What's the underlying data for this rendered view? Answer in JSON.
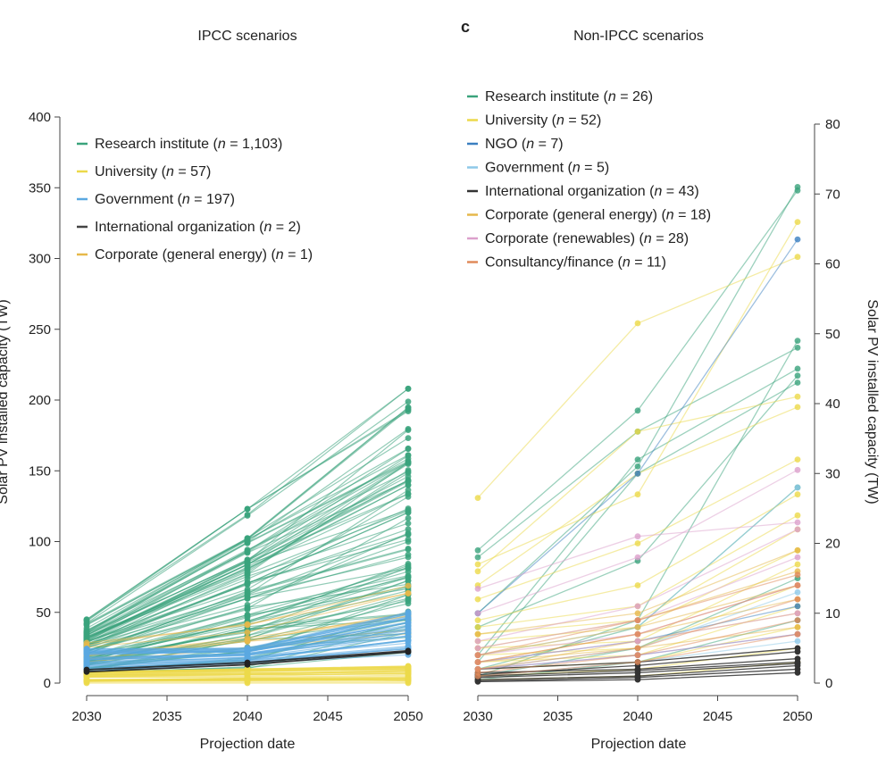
{
  "chart_data": [
    {
      "type": "line",
      "title": "IPCC scenarios",
      "panel_label": "",
      "xlabel": "Projection date",
      "ylabel": "Solar PV installed capacity (TW)",
      "xlim": [
        2030,
        2050
      ],
      "ylim": [
        0,
        400
      ],
      "xticks": [
        2030,
        2035,
        2040,
        2045,
        2050
      ],
      "yticks": [
        0,
        50,
        100,
        150,
        200,
        250,
        300,
        350,
        400
      ],
      "legend_position": "top-left",
      "legend": [
        {
          "label": "Research institute",
          "n": "1,103",
          "color": "#3aa37c"
        },
        {
          "label": "University",
          "n": "57",
          "color": "#ecd94a"
        },
        {
          "label": "Government",
          "n": "197",
          "color": "#5aa8e0"
        },
        {
          "label": "International organization",
          "n": "2",
          "color": "#444444"
        },
        {
          "label": "Corporate (general energy)",
          "n": "1",
          "color": "#e6b84a"
        }
      ],
      "series": [
        {
          "name": "Research institute",
          "color": "#3aa37c",
          "x": [
            2030,
            2040,
            2050
          ],
          "ranges": [
            [
              6,
              45
            ],
            [
              10,
              123
            ],
            [
              20,
              208
            ]
          ],
          "line_count": 90
        },
        {
          "name": "Corporate (general energy)",
          "color": "#e6b84a",
          "x": [
            2030,
            2040,
            2050
          ],
          "ranges": [
            [
              15,
              35
            ],
            [
              25,
              52
            ],
            [
              35,
              90
            ]
          ],
          "line_count": 8
        },
        {
          "name": "Government",
          "color": "#5aa8e0",
          "x": [
            2030,
            2040,
            2050
          ],
          "ranges": [
            [
              8,
              25
            ],
            [
              14,
              25
            ],
            [
              20,
              50
            ]
          ],
          "line_count": 40
        },
        {
          "name": "University",
          "color": "#ecd94a",
          "x": [
            2030,
            2040,
            2050
          ],
          "ranges": [
            [
              0,
              8
            ],
            [
              0,
              10
            ],
            [
              0,
              12
            ]
          ],
          "line_count": 40
        },
        {
          "name": "International organization",
          "color": "#222222",
          "x": [
            2030,
            2040,
            2050
          ],
          "ranges": [
            [
              8,
              12
            ],
            [
              13,
              17
            ],
            [
              22,
              24
            ]
          ],
          "line_count": 2
        }
      ]
    },
    {
      "type": "line",
      "title": "Non-IPCC scenarios",
      "panel_label": "c",
      "xlabel": "Projection date",
      "ylabel": "Solar PV installed capacity (TW)",
      "xlim": [
        2030,
        2050
      ],
      "ylim": [
        0,
        80
      ],
      "xticks": [
        2030,
        2035,
        2040,
        2045,
        2050
      ],
      "yticks": [
        0,
        10,
        20,
        30,
        40,
        50,
        60,
        70,
        80
      ],
      "legend_position": "top-left",
      "legend": [
        {
          "label": "Research institute",
          "n": "26",
          "color": "#3aa37c"
        },
        {
          "label": "University",
          "n": "52",
          "color": "#ecd94a"
        },
        {
          "label": "NGO",
          "n": "7",
          "color": "#3b7fc0"
        },
        {
          "label": "Government",
          "n": "5",
          "color": "#8ec9e8"
        },
        {
          "label": "International organization",
          "n": "43",
          "color": "#333333"
        },
        {
          "label": "Corporate (general energy)",
          "n": "18",
          "color": "#e6b84a"
        },
        {
          "label": "Corporate (renewables)",
          "n": "28",
          "color": "#dca0cc"
        },
        {
          "label": "Consultancy/finance",
          "n": "11",
          "color": "#e08a5a"
        }
      ],
      "series": [
        {
          "name": "Research institute",
          "color": "#3aa37c",
          "x": [
            2030,
            2040,
            2050
          ],
          "lines": [
            [
              19,
              39,
              70.5
            ],
            [
              18,
              36,
              48
            ],
            [
              10,
              31,
              71
            ],
            [
              8,
              17.5,
              44
            ],
            [
              2,
              8,
              28
            ],
            [
              1,
              5,
              15
            ],
            [
              0.5,
              3,
              9
            ],
            [
              1,
              9,
              49
            ],
            [
              4,
              32,
              45
            ],
            [
              3,
              30,
              43
            ]
          ]
        },
        {
          "name": "University",
          "color": "#ecd94a",
          "x": [
            2030,
            2040,
            2050
          ],
          "lines": [
            [
              26.5,
              51.5,
              61
            ],
            [
              17,
              27,
              66
            ],
            [
              16,
              36,
              41
            ],
            [
              14,
              30,
              39.5
            ],
            [
              12,
              20,
              32
            ],
            [
              9,
              14,
              27
            ],
            [
              8,
              11,
              24
            ],
            [
              7,
              9,
              22
            ],
            [
              6,
              8,
              19
            ],
            [
              5,
              6,
              17
            ],
            [
              4,
              5,
              14
            ],
            [
              3,
              4,
              11
            ],
            [
              2,
              3,
              8
            ],
            [
              1,
              2,
              5
            ],
            [
              0.5,
              1,
              3
            ]
          ]
        },
        {
          "name": "NGO",
          "color": "#3b7fc0",
          "x": [
            2030,
            2040,
            2050
          ],
          "lines": [
            [
              10,
              30,
              63.5
            ],
            [
              3,
              6,
              11
            ],
            [
              2,
              4,
              7
            ]
          ]
        },
        {
          "name": "Government",
          "color": "#8ec9e8",
          "x": [
            2030,
            2040,
            2050
          ],
          "lines": [
            [
              4,
              8,
              28
            ],
            [
              2,
              5,
              13
            ],
            [
              1,
              3,
              6
            ]
          ]
        },
        {
          "name": "International organization",
          "color": "#333333",
          "x": [
            2030,
            2040,
            2050
          ],
          "lines": [
            [
              1.5,
              2,
              3.5
            ],
            [
              1,
              1.8,
              3
            ],
            [
              0.8,
              1.5,
              2.8
            ],
            [
              0.5,
              1,
              2.5
            ],
            [
              0.3,
              0.8,
              2
            ],
            [
              0.2,
              0.5,
              1.5
            ],
            [
              1.2,
              2.5,
              4.5
            ],
            [
              2,
              3,
              5
            ]
          ]
        },
        {
          "name": "Corporate (general energy)",
          "color": "#e6b84a",
          "x": [
            2030,
            2040,
            2050
          ],
          "lines": [
            [
              7,
              10,
              19
            ],
            [
              5,
              9,
              16
            ],
            [
              4,
              8,
              14
            ],
            [
              3,
              7,
              12
            ],
            [
              2,
              6,
              10
            ],
            [
              3,
              5,
              8
            ]
          ]
        },
        {
          "name": "Corporate (renewables)",
          "color": "#dca0cc",
          "x": [
            2030,
            2040,
            2050
          ],
          "lines": [
            [
              13.5,
              21,
              23
            ],
            [
              10,
              18,
              30.5
            ],
            [
              6,
              11,
              22
            ],
            [
              5,
              9,
              18
            ],
            [
              4,
              7,
              14
            ],
            [
              3,
              6,
              10
            ],
            [
              2,
              4,
              7
            ]
          ]
        },
        {
          "name": "Consultancy/finance",
          "color": "#e08a5a",
          "x": [
            2030,
            2040,
            2050
          ],
          "lines": [
            [
              4,
              9,
              15.5
            ],
            [
              3,
              7,
              14
            ],
            [
              2,
              5,
              12
            ],
            [
              1.5,
              4,
              9
            ],
            [
              1,
              3,
              7
            ]
          ]
        }
      ]
    }
  ]
}
